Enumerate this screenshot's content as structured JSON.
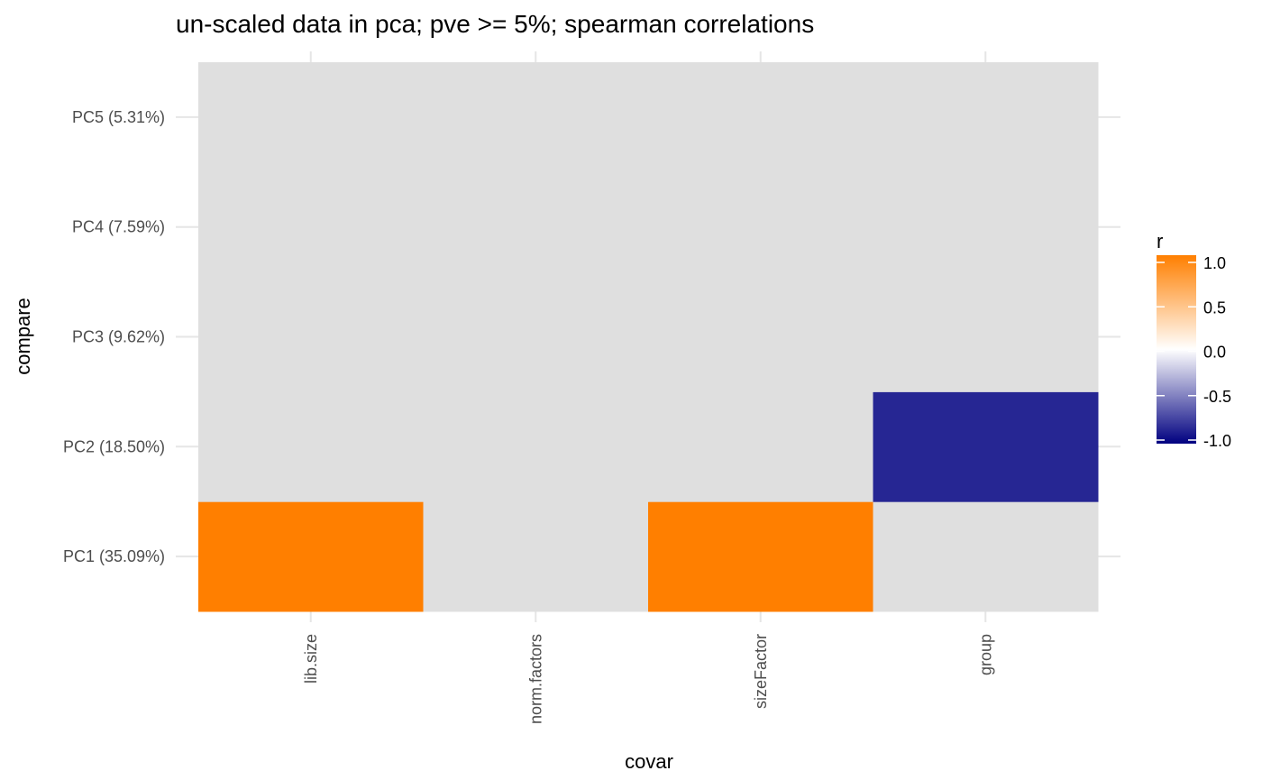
{
  "chart_data": {
    "type": "heatmap",
    "title": "un-scaled  data in pca; pve >= 5%; spearman correlations",
    "xlabel": "covar",
    "ylabel": "compare",
    "x_categories": [
      "lib.size",
      "norm.factors",
      "sizeFactor",
      "group"
    ],
    "y_categories": [
      "PC1 (35.09%)",
      "PC2 (18.50%)",
      "PC3 (9.62%)",
      "PC4 (7.59%)",
      "PC5 (5.31%)"
    ],
    "cells": [
      {
        "x": "lib.size",
        "y": "PC1 (35.09%)",
        "r": 1.0
      },
      {
        "x": "norm.factors",
        "y": "PC1 (35.09%)",
        "r": null
      },
      {
        "x": "sizeFactor",
        "y": "PC1 (35.09%)",
        "r": 1.0
      },
      {
        "x": "group",
        "y": "PC1 (35.09%)",
        "r": null
      },
      {
        "x": "lib.size",
        "y": "PC2 (18.50%)",
        "r": null
      },
      {
        "x": "norm.factors",
        "y": "PC2 (18.50%)",
        "r": null
      },
      {
        "x": "sizeFactor",
        "y": "PC2 (18.50%)",
        "r": null
      },
      {
        "x": "group",
        "y": "PC2 (18.50%)",
        "r": -0.85
      },
      {
        "x": "lib.size",
        "y": "PC3 (9.62%)",
        "r": null
      },
      {
        "x": "norm.factors",
        "y": "PC3 (9.62%)",
        "r": null
      },
      {
        "x": "sizeFactor",
        "y": "PC3 (9.62%)",
        "r": null
      },
      {
        "x": "group",
        "y": "PC3 (9.62%)",
        "r": null
      },
      {
        "x": "lib.size",
        "y": "PC4 (7.59%)",
        "r": null
      },
      {
        "x": "norm.factors",
        "y": "PC4 (7.59%)",
        "r": null
      },
      {
        "x": "sizeFactor",
        "y": "PC4 (7.59%)",
        "r": null
      },
      {
        "x": "group",
        "y": "PC4 (7.59%)",
        "r": null
      },
      {
        "x": "lib.size",
        "y": "PC5 (5.31%)",
        "r": null
      },
      {
        "x": "norm.factors",
        "y": "PC5 (5.31%)",
        "r": null
      },
      {
        "x": "sizeFactor",
        "y": "PC5 (5.31%)",
        "r": null
      },
      {
        "x": "group",
        "y": "PC5 (5.31%)",
        "r": null
      }
    ],
    "legend": {
      "title": "r",
      "position": "right",
      "range": [
        -1.0,
        1.0
      ],
      "ticks": [
        1.0,
        0.5,
        0.0,
        -0.5,
        -1.0
      ],
      "tick_labels": [
        "1.0",
        "0.5",
        "0.0",
        "-0.5",
        "-1.0"
      ]
    },
    "colors": {
      "na": "#dfdfdf",
      "high": "#ff7f00",
      "mid": "#ffffff",
      "low": "#000080",
      "grid": "#e6e6e6"
    },
    "grid": true
  }
}
